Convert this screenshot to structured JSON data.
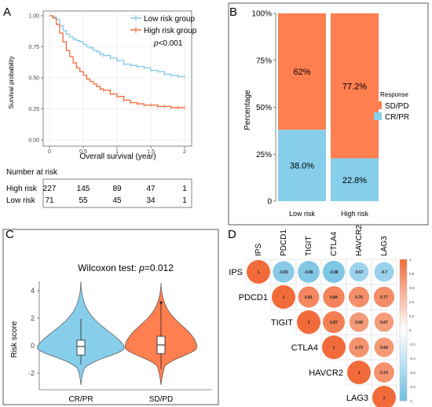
{
  "panels": {
    "A": "A",
    "B": "B",
    "C": "C",
    "D": "D"
  },
  "colors": {
    "low": "#7ec8e3",
    "high": "#f26b3a",
    "crpr": "#87ceeb",
    "sdpd": "#ff7f50",
    "panelBorder": "#444444",
    "grid": "#e5e5e5"
  },
  "chart_data": [
    {
      "id": "A",
      "type": "line",
      "xlabel": "Overall survival (year)",
      "ylabel": "Survival probability",
      "xlim": [
        0,
        2
      ],
      "ylim": [
        0,
        1
      ],
      "xticks": [
        "0",
        "0.5",
        "1",
        "1.5",
        "2"
      ],
      "yticks": [
        "0.00",
        "0.25",
        "0.50",
        "0.75",
        "1.00"
      ],
      "legend": {
        "position": "top-right",
        "items": [
          "Low risk group",
          "High risk group"
        ]
      },
      "pvalue_prefix": "p",
      "pvalue_rest": "<0.001",
      "series": [
        {
          "name": "Low risk group",
          "x": [
            0,
            0.05,
            0.1,
            0.15,
            0.2,
            0.25,
            0.3,
            0.35,
            0.4,
            0.45,
            0.5,
            0.55,
            0.6,
            0.65,
            0.7,
            0.75,
            0.8,
            0.9,
            1.0,
            1.1,
            1.2,
            1.3,
            1.4,
            1.5,
            1.6,
            1.7,
            1.8,
            1.9,
            2.0
          ],
          "values": [
            1.0,
            0.99,
            0.97,
            0.92,
            0.88,
            0.85,
            0.83,
            0.81,
            0.8,
            0.79,
            0.77,
            0.75,
            0.74,
            0.72,
            0.71,
            0.69,
            0.68,
            0.66,
            0.64,
            0.61,
            0.6,
            0.59,
            0.58,
            0.56,
            0.55,
            0.53,
            0.52,
            0.51,
            0.51
          ]
        },
        {
          "name": "High risk group",
          "x": [
            0,
            0.05,
            0.1,
            0.15,
            0.2,
            0.25,
            0.3,
            0.35,
            0.4,
            0.45,
            0.5,
            0.55,
            0.6,
            0.65,
            0.7,
            0.75,
            0.8,
            0.9,
            1.0,
            1.1,
            1.2,
            1.3,
            1.4,
            1.5,
            1.6,
            1.7,
            1.8,
            1.9,
            2.0
          ],
          "values": [
            1.0,
            0.98,
            0.93,
            0.86,
            0.79,
            0.72,
            0.67,
            0.62,
            0.58,
            0.55,
            0.52,
            0.49,
            0.47,
            0.45,
            0.43,
            0.41,
            0.4,
            0.37,
            0.35,
            0.32,
            0.3,
            0.29,
            0.28,
            0.28,
            0.27,
            0.27,
            0.26,
            0.26,
            0.26
          ]
        }
      ],
      "risk_table": {
        "title": "Number at risk",
        "rows": [
          {
            "label": "High risk",
            "counts": [
              "227",
              "145",
              "89",
              "47",
              "1"
            ]
          },
          {
            "label": "Low risk",
            "counts": [
              "71",
              "55",
              "45",
              "34",
              "1"
            ]
          }
        ]
      }
    },
    {
      "id": "B",
      "type": "bar",
      "stacked": true,
      "ylabel": "Percentage",
      "yticks": [
        "0",
        "25%",
        "50%",
        "75%",
        "100%"
      ],
      "categories": [
        "Low risk",
        "High risk"
      ],
      "series": [
        {
          "name": "CR/PR",
          "values": [
            38.0,
            22.8
          ]
        },
        {
          "name": "SD/PD",
          "values": [
            62.0,
            77.2
          ]
        }
      ],
      "data_labels": {
        "CR/PR": [
          "38.0%",
          "22.8%"
        ],
        "SD/PD": [
          "62%",
          "77.2%"
        ]
      },
      "legend": {
        "title": "Response",
        "position": "right",
        "items": [
          "SD/PD",
          "CR/PR"
        ]
      }
    },
    {
      "id": "C",
      "type": "violin",
      "title_prefix": "Wilcoxon test: ",
      "title_p": "p",
      "title_rest": "=0.012",
      "ylabel": "Risk score",
      "ylim": [
        -3,
        5
      ],
      "yticks": [
        "-2",
        "0",
        "2",
        "4"
      ],
      "categories": [
        "CR/PR",
        "SD/PD"
      ],
      "box": [
        {
          "q1": -0.7,
          "median": -0.35,
          "q3": 0.3,
          "whisker_low": -1.9,
          "whisker_high": 1.9
        },
        {
          "q1": -0.4,
          "median": 0.0,
          "q3": 0.7,
          "whisker_low": -1.6,
          "whisker_high": 2.2
        }
      ]
    },
    {
      "id": "D",
      "type": "heatmap",
      "labels": [
        "IPS",
        "PDCD1",
        "TIGIT",
        "CTLA4",
        "HAVCR2",
        "LAG3"
      ],
      "matrix": [
        [
          1,
          -0.83,
          -0.86,
          -0.88,
          -0.67,
          -0.7
        ],
        [
          null,
          1,
          0.81,
          0.84,
          0.76,
          0.77
        ],
        [
          null,
          null,
          1,
          0.87,
          0.68,
          0.67
        ],
        [
          null,
          null,
          null,
          1,
          0.73,
          0.69
        ],
        [
          null,
          null,
          null,
          null,
          1,
          0.74
        ],
        [
          null,
          null,
          null,
          null,
          null,
          1
        ]
      ],
      "colorbar_ticks": [
        "1",
        "0.8",
        "0.6",
        "0.4",
        "0.2",
        "0",
        "-0.2",
        "-0.4",
        "-0.6",
        "-0.8",
        "-1"
      ]
    }
  ]
}
